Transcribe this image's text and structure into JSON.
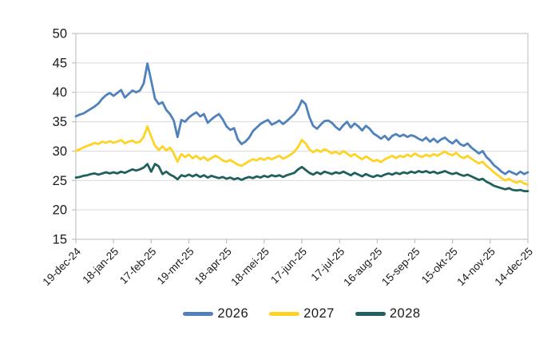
{
  "chart_data": {
    "type": "line",
    "title": "",
    "xlabel": "",
    "ylabel": "",
    "ylim": [
      15,
      50
    ],
    "y_ticks": [
      15,
      20,
      25,
      30,
      35,
      40,
      45,
      50
    ],
    "x_range_days": [
      0,
      360
    ],
    "x_tick_interval_days": 30,
    "sample_step_days": 3,
    "grid": "horizontal",
    "legend_position": "bottom-center",
    "x_tick_labels": [
      "19-dec-24",
      "18-jan-25",
      "17-feb-25",
      "19-mrt-25",
      "18-apr-25",
      "18-mei-25",
      "17-jun-25",
      "17-jul-25",
      "16-aug-25",
      "15-sep-25",
      "15-okt-25",
      "14-nov-25",
      "14-dec-25"
    ],
    "series": [
      {
        "name": "2026",
        "color": "#4F81BD",
        "values": [
          35.9,
          36.2,
          36.4,
          36.8,
          37.2,
          37.6,
          38.1,
          38.9,
          39.5,
          39.9,
          39.4,
          39.9,
          40.4,
          39.1,
          39.7,
          40.3,
          40.0,
          40.3,
          41.5,
          44.9,
          42.0,
          38.9,
          38.0,
          38.3,
          37.0,
          36.3,
          35.2,
          32.4,
          35.3,
          35.0,
          35.7,
          36.2,
          36.6,
          35.9,
          36.3,
          34.8,
          35.4,
          35.9,
          36.3,
          35.4,
          34.2,
          33.6,
          33.9,
          32.0,
          31.2,
          31.6,
          32.3,
          33.4,
          34.0,
          34.6,
          35.0,
          35.3,
          34.5,
          34.8,
          35.2,
          34.6,
          35.1,
          35.7,
          36.3,
          37.2,
          38.6,
          38.0,
          35.8,
          34.3,
          33.8,
          34.5,
          35.1,
          35.2,
          34.8,
          34.1,
          33.6,
          34.4,
          35.0,
          34.0,
          34.7,
          34.2,
          33.5,
          34.3,
          33.8,
          33.0,
          32.6,
          32.1,
          32.6,
          31.9,
          32.6,
          32.9,
          32.5,
          32.8,
          32.4,
          32.7,
          32.5,
          32.1,
          31.8,
          32.3,
          31.6,
          32.1,
          31.5,
          32.0,
          32.3,
          31.7,
          31.3,
          31.9,
          31.2,
          30.9,
          31.3,
          30.6,
          30.1,
          29.6,
          30.0,
          29.0,
          28.4,
          27.6,
          27.1,
          26.5,
          26.1,
          26.6,
          26.3,
          26.0,
          26.5,
          26.1,
          26.4
        ]
      },
      {
        "name": "2027",
        "color": "#FFD226",
        "values": [
          30.0,
          30.3,
          30.6,
          30.9,
          31.1,
          31.4,
          31.2,
          31.6,
          31.4,
          31.7,
          31.4,
          31.6,
          31.9,
          31.3,
          31.6,
          31.8,
          31.4,
          31.6,
          32.4,
          34.2,
          32.5,
          30.9,
          30.2,
          30.8,
          30.1,
          30.6,
          29.6,
          28.2,
          29.5,
          29.0,
          29.4,
          28.8,
          29.2,
          28.6,
          29.0,
          28.4,
          28.8,
          29.2,
          28.9,
          28.4,
          28.2,
          28.5,
          28.1,
          27.7,
          27.5,
          27.9,
          28.3,
          28.6,
          28.4,
          28.8,
          28.5,
          28.9,
          28.6,
          28.9,
          29.2,
          28.7,
          29.0,
          29.4,
          29.9,
          30.7,
          31.9,
          31.3,
          30.3,
          29.8,
          30.2,
          29.9,
          30.3,
          30.0,
          29.6,
          29.9,
          29.5,
          30.0,
          29.6,
          29.1,
          29.5,
          29.0,
          28.6,
          29.1,
          28.7,
          28.3,
          28.5,
          28.1,
          28.6,
          28.9,
          29.2,
          28.8,
          29.2,
          29.0,
          29.4,
          29.1,
          29.6,
          29.2,
          29.0,
          29.4,
          29.1,
          29.5,
          29.2,
          29.6,
          29.9,
          29.5,
          29.3,
          29.7,
          29.1,
          28.8,
          29.2,
          28.7,
          28.3,
          27.9,
          28.2,
          27.5,
          27.0,
          26.4,
          25.9,
          25.4,
          25.0,
          25.3,
          24.9,
          24.6,
          24.9,
          24.5,
          24.3
        ]
      },
      {
        "name": "2028",
        "color": "#1F5F5C",
        "values": [
          25.5,
          25.6,
          25.8,
          25.9,
          26.1,
          26.2,
          26.0,
          26.2,
          26.4,
          26.2,
          26.4,
          26.2,
          26.5,
          26.3,
          26.6,
          26.9,
          26.7,
          26.9,
          27.2,
          27.8,
          26.5,
          27.8,
          27.4,
          26.1,
          26.5,
          26.0,
          25.7,
          25.2,
          25.9,
          25.7,
          26.0,
          25.7,
          26.0,
          25.6,
          25.9,
          25.5,
          25.8,
          25.6,
          25.4,
          25.6,
          25.3,
          25.5,
          25.2,
          25.4,
          25.1,
          25.4,
          25.6,
          25.4,
          25.7,
          25.5,
          25.8,
          25.6,
          25.9,
          25.7,
          25.9,
          25.6,
          25.9,
          26.1,
          26.3,
          26.9,
          27.3,
          26.8,
          26.3,
          26.0,
          26.4,
          26.1,
          26.5,
          26.3,
          26.1,
          26.4,
          26.2,
          26.5,
          26.2,
          25.9,
          26.3,
          26.0,
          25.7,
          26.1,
          25.8,
          25.6,
          25.9,
          25.7,
          26.0,
          26.2,
          26.0,
          26.3,
          26.1,
          26.4,
          26.2,
          26.5,
          26.3,
          26.6,
          26.4,
          26.6,
          26.3,
          26.5,
          26.2,
          26.4,
          26.6,
          26.3,
          26.1,
          26.3,
          26.0,
          25.8,
          26.0,
          25.7,
          25.4,
          25.1,
          25.3,
          24.8,
          24.5,
          24.1,
          23.9,
          23.7,
          23.5,
          23.7,
          23.4,
          23.3,
          23.4,
          23.2,
          23.2
        ]
      }
    ]
  },
  "colors": {
    "background": "#FFFFFF",
    "gridline": "#D9D9D9",
    "plot_border": "#C6C6C6",
    "tick": "#BFBFBF",
    "label_text": "#1A1A1A"
  }
}
